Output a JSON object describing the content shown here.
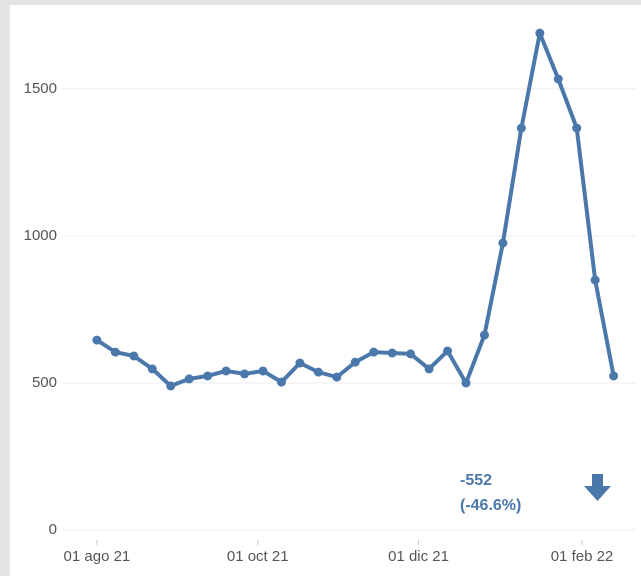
{
  "chart_data": {
    "type": "line",
    "x": [
      "2021-08-01",
      "2021-08-08",
      "2021-08-15",
      "2021-08-22",
      "2021-08-29",
      "2021-09-05",
      "2021-09-12",
      "2021-09-19",
      "2021-09-26",
      "2021-10-03",
      "2021-10-10",
      "2021-10-17",
      "2021-10-24",
      "2021-10-31",
      "2021-11-07",
      "2021-11-14",
      "2021-11-21",
      "2021-11-28",
      "2021-12-05",
      "2021-12-12",
      "2021-12-19",
      "2021-12-26",
      "2022-01-02",
      "2022-01-09",
      "2022-01-16",
      "2022-01-23",
      "2022-01-30",
      "2022-02-06",
      "2022-02-13"
    ],
    "series": [
      {
        "name": null,
        "color": "#4a78aa",
        "values": [
          646,
          605,
          592,
          548,
          490,
          514,
          524,
          541,
          531,
          541,
          503,
          568,
          537,
          520,
          571,
          605,
          602,
          599,
          548,
          609,
          500,
          663,
          976,
          1367,
          1690,
          1534,
          1367,
          850,
          524
        ]
      }
    ],
    "xlim": [
      "2021-07-18",
      "2022-02-23"
    ],
    "xticks": [
      {
        "value": "2021-08-01",
        "label": "01 ago 21"
      },
      {
        "value": "2021-10-01",
        "label": "01 oct 21"
      },
      {
        "value": "2021-12-01",
        "label": "01 dic 21"
      },
      {
        "value": "2022-02-01",
        "label": "01 feb 22"
      }
    ],
    "ylim": [
      0,
      1750
    ],
    "yticks": [
      0,
      500,
      1000,
      1500
    ],
    "grid": true,
    "annotations": [
      "-552",
      "(-46.6%)"
    ]
  }
}
